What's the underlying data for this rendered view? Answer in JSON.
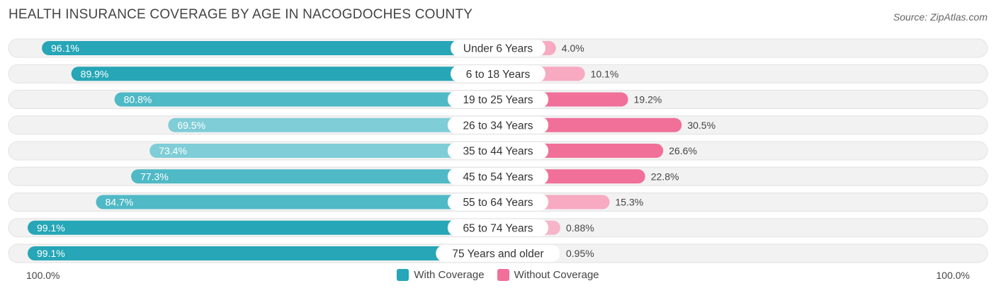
{
  "title": "HEALTH INSURANCE COVERAGE BY AGE IN NACOGDOCHES COUNTY",
  "source": "Source: ZipAtlas.com",
  "colors": {
    "with_dark": "#26a6b6",
    "with_light": "#7fcdd6",
    "without_dark": "#f07099",
    "without_light": "#f7aac2",
    "row_bg": "#f2f2f2"
  },
  "footer": {
    "left": "100.0%",
    "right": "100.0%"
  },
  "legend": {
    "with": "With Coverage",
    "without": "Without Coverage"
  },
  "chart_data": {
    "type": "bar",
    "orientation": "diverging-horizontal",
    "title": "HEALTH INSURANCE COVERAGE BY AGE IN NACOGDOCHES COUNTY",
    "xlim": [
      -100,
      100
    ],
    "categories": [
      "Under 6 Years",
      "6 to 18 Years",
      "19 to 25 Years",
      "26 to 34 Years",
      "35 to 44 Years",
      "45 to 54 Years",
      "55 to 64 Years",
      "65 to 74 Years",
      "75 Years and older"
    ],
    "series": [
      {
        "name": "With Coverage",
        "values": [
          96.1,
          89.9,
          80.8,
          69.5,
          73.4,
          77.3,
          84.7,
          99.1,
          99.1
        ],
        "labels": [
          "96.1%",
          "89.9%",
          "80.8%",
          "69.5%",
          "73.4%",
          "77.3%",
          "84.7%",
          "99.1%",
          "99.1%"
        ]
      },
      {
        "name": "Without Coverage",
        "values": [
          4.0,
          10.1,
          19.2,
          30.5,
          26.6,
          22.8,
          15.3,
          0.88,
          0.95
        ],
        "labels": [
          "4.0%",
          "10.1%",
          "19.2%",
          "30.5%",
          "26.6%",
          "22.8%",
          "15.3%",
          "0.88%",
          "0.95%"
        ]
      }
    ]
  }
}
